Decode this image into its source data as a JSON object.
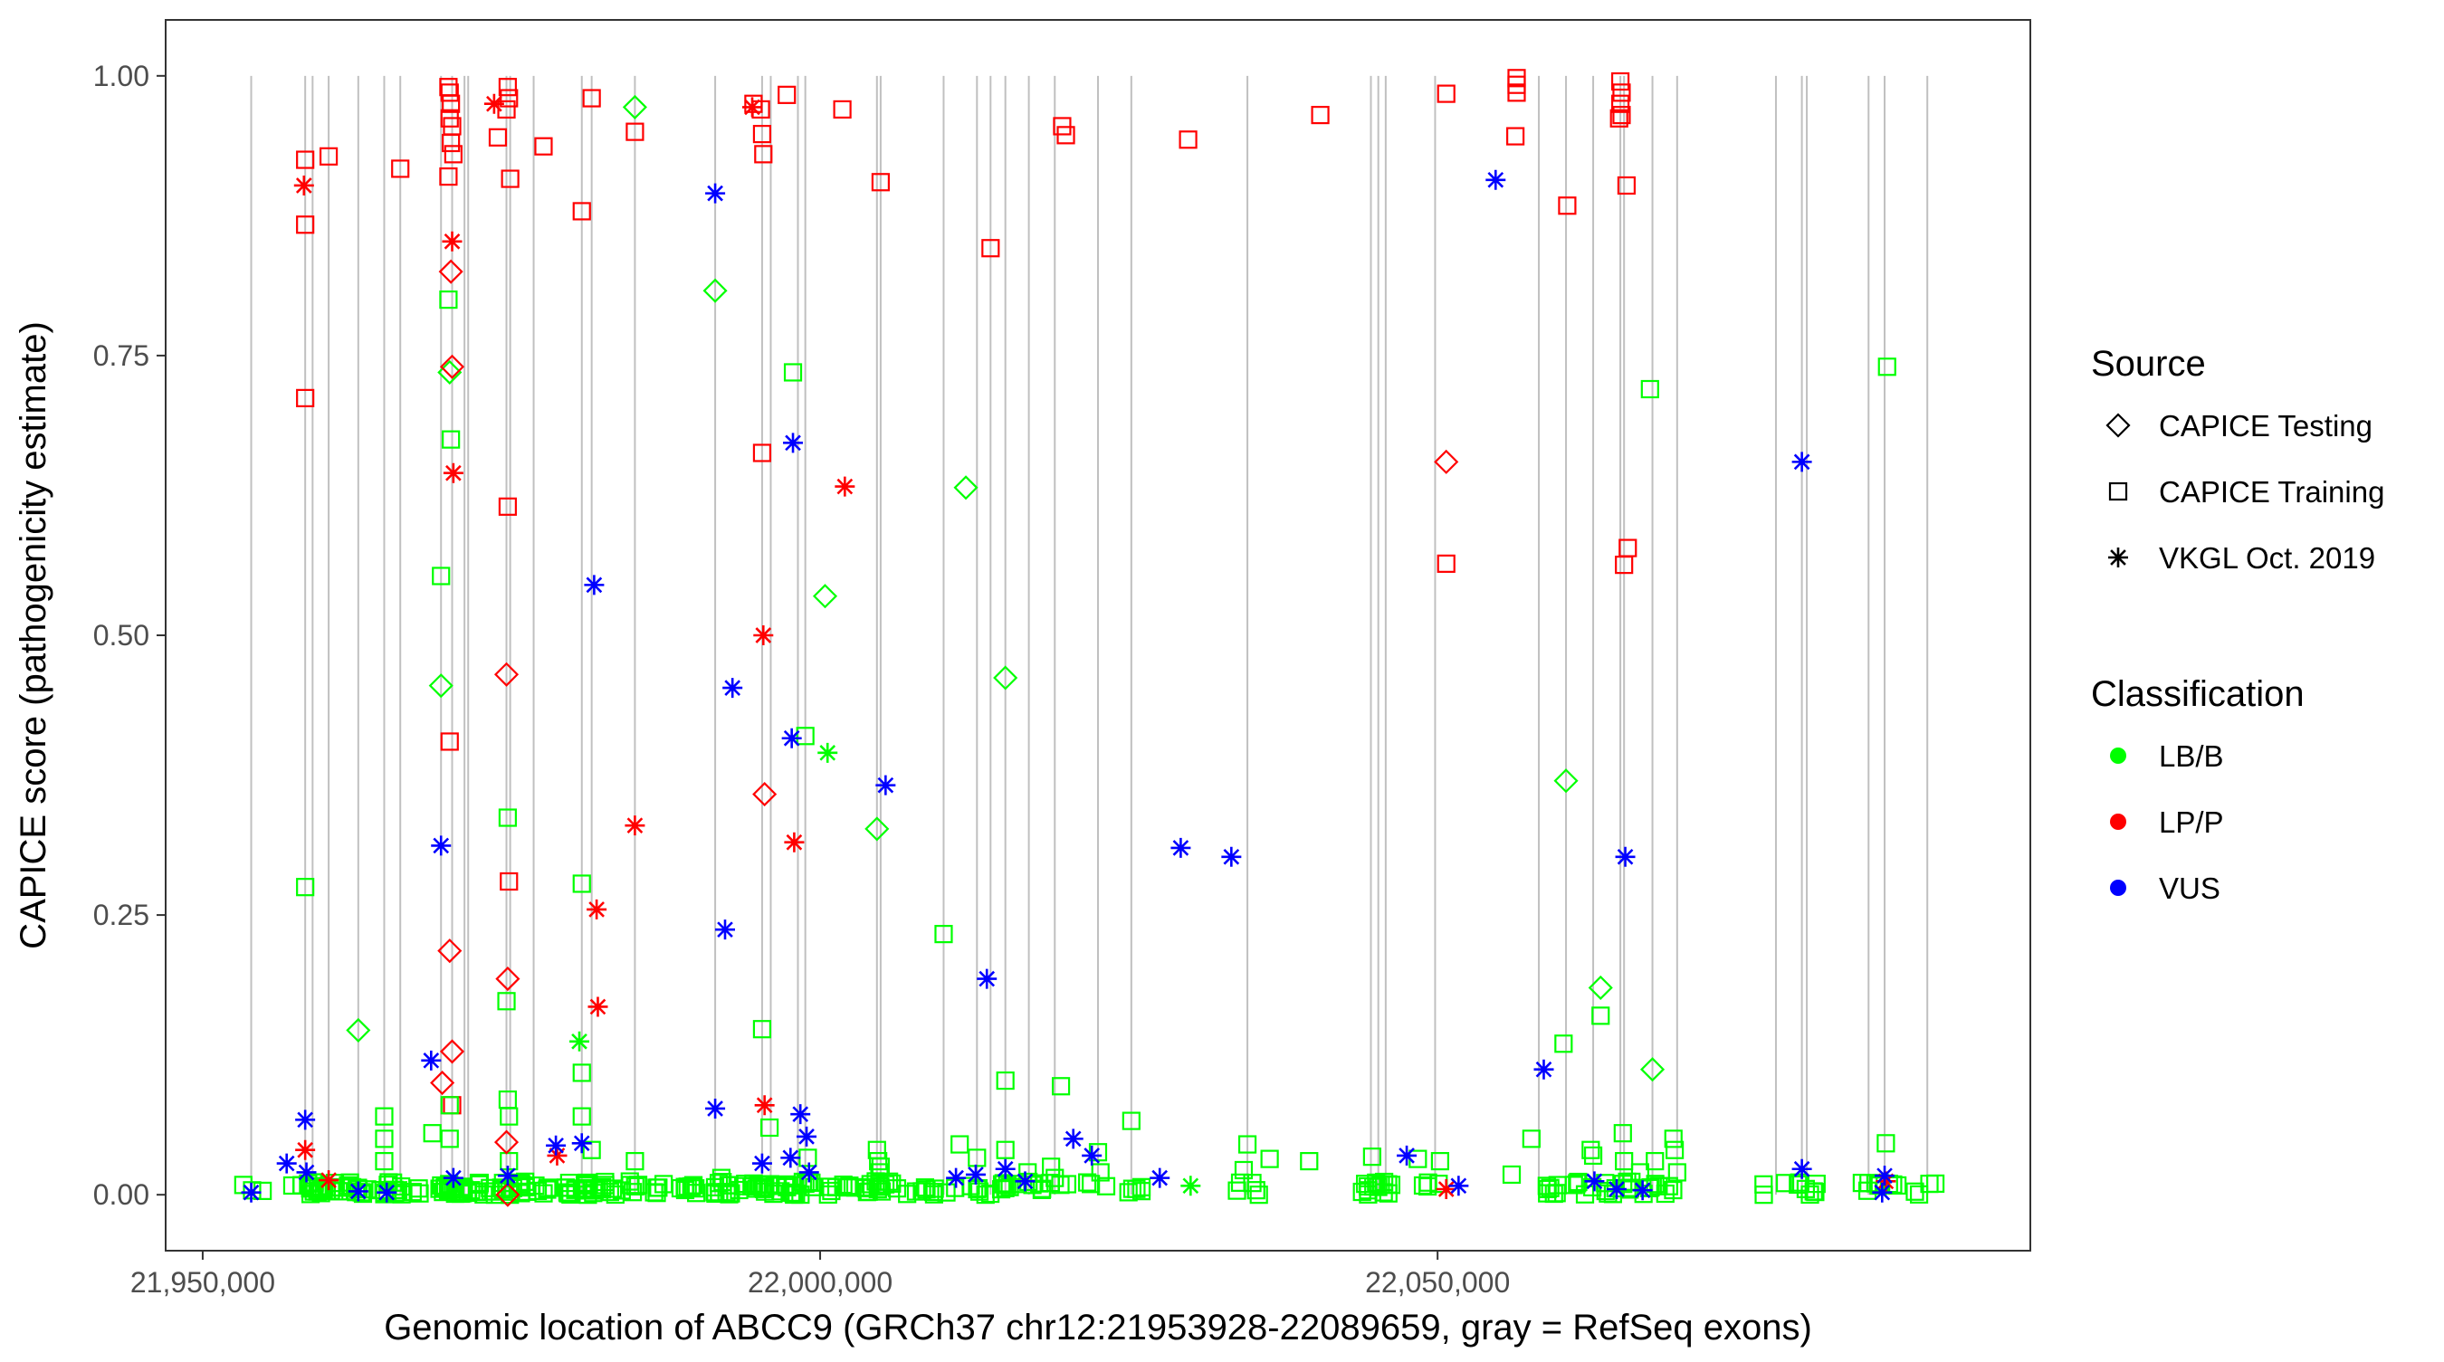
{
  "chart_data": {
    "type": "scatter",
    "title": "",
    "xlabel": "Genomic location of ABCC9 (GRCh37 chr12:21953928-22089659, gray = RefSeq exons)",
    "ylabel": "CAPICE score (pathogenicity estimate)",
    "xlim": [
      21947000,
      22098000
    ],
    "ylim": [
      -0.05,
      1.05
    ],
    "x_ticks": [
      21950000,
      22000000,
      22050000
    ],
    "x_tick_labels": [
      "21,950,000",
      "22,000,000",
      "22,050,000"
    ],
    "y_ticks": [
      0,
      0.25,
      0.5,
      0.75,
      1.0
    ],
    "y_tick_labels": [
      "0.00",
      "0.25",
      "0.50",
      "0.75",
      "1.00"
    ],
    "grid": false,
    "exon_lines": [
      21953928,
      21958300,
      21958900,
      21960200,
      21962600,
      21964700,
      21966000,
      21969300,
      21970200,
      21971200,
      21971500,
      21974600,
      21974900,
      21976800,
      21980700,
      21981500,
      21985000,
      21991500,
      21995300,
      21996000,
      21998200,
      21998800,
      22004600,
      22004900,
      22010000,
      22012700,
      22013800,
      22015000,
      22016900,
      22019000,
      22022500,
      22025200,
      22034600,
      22044600,
      22045200,
      22045800,
      22049800,
      22058200,
      22060400,
      22062600,
      22064800,
      22065100,
      22067400,
      22069400,
      22077400,
      22079500,
      22079900,
      22084900,
      22086200,
      22089659
    ],
    "legend": {
      "position": "right",
      "source_title": "Source",
      "source_items": [
        {
          "label": "CAPICE Testing",
          "shape": "diamond"
        },
        {
          "label": "CAPICE Training",
          "shape": "square"
        },
        {
          "label": "VKGL Oct. 2019",
          "shape": "asterisk"
        }
      ],
      "class_title": "Classification",
      "class_items": [
        {
          "label": "LB/B",
          "color": "#00ff00"
        },
        {
          "label": "LP/P",
          "color": "#ff0000"
        },
        {
          "label": "VUS",
          "color": "#0000ff"
        }
      ]
    },
    "colors": {
      "LB/B": "#00ff00",
      "LP/P": "#ff0000",
      "VUS": "#0000ff"
    },
    "series": [
      {
        "name": "CAPICE Training - LP/P",
        "shape": "square",
        "class": "LP/P",
        "points": [
          [
            21958300,
            0.925
          ],
          [
            21958300,
            0.867
          ],
          [
            21958300,
            0.712
          ],
          [
            21960200,
            0.928
          ],
          [
            21966000,
            0.917
          ],
          [
            21969900,
            0.99
          ],
          [
            21970000,
            0.985
          ],
          [
            21970100,
            0.975
          ],
          [
            21970000,
            0.962
          ],
          [
            21970200,
            0.955
          ],
          [
            21970100,
            0.94
          ],
          [
            21970300,
            0.93
          ],
          [
            21969900,
            0.91
          ],
          [
            21970000,
            0.405
          ],
          [
            21970200,
            0.08
          ],
          [
            21974700,
            0.99
          ],
          [
            21974800,
            0.98
          ],
          [
            21974600,
            0.97
          ],
          [
            21974900,
            0.908
          ],
          [
            21974700,
            0.615
          ],
          [
            21974800,
            0.28
          ],
          [
            21973900,
            0.945
          ],
          [
            21977600,
            0.937
          ],
          [
            21980700,
            0.879
          ],
          [
            21981500,
            0.98
          ],
          [
            21985000,
            0.95
          ],
          [
            21994600,
            0.975
          ],
          [
            21995200,
            0.97
          ],
          [
            21995300,
            0.948
          ],
          [
            21995400,
            0.93
          ],
          [
            21995300,
            0.663
          ],
          [
            21997300,
            0.983
          ],
          [
            22001800,
            0.97
          ],
          [
            22004900,
            0.905
          ],
          [
            22013800,
            0.846
          ],
          [
            22019600,
            0.955
          ],
          [
            22019900,
            0.947
          ],
          [
            22029800,
            0.943
          ],
          [
            22040500,
            0.965
          ],
          [
            22050700,
            0.984
          ],
          [
            22050700,
            0.564
          ],
          [
            22056400,
            0.998
          ],
          [
            22056400,
            0.992
          ],
          [
            22056400,
            0.985
          ],
          [
            22056300,
            0.946
          ],
          [
            22060500,
            0.884
          ],
          [
            22064800,
            0.995
          ],
          [
            22064900,
            0.985
          ],
          [
            22064800,
            0.975
          ],
          [
            22064900,
            0.965
          ],
          [
            22064700,
            0.962
          ],
          [
            22065300,
            0.902
          ],
          [
            22065400,
            0.578
          ],
          [
            22065100,
            0.563
          ]
        ]
      },
      {
        "name": "CAPICE Training - LB/B",
        "shape": "square",
        "class": "LB/B",
        "points": [
          [
            21958300,
            0.275
          ],
          [
            21964700,
            0.07
          ],
          [
            21964700,
            0.05
          ],
          [
            21964700,
            0.03
          ],
          [
            21968600,
            0.055
          ],
          [
            21969300,
            0.553
          ],
          [
            21969900,
            0.8
          ],
          [
            21970100,
            0.675
          ],
          [
            21970000,
            0.05
          ],
          [
            21970000,
            0.08
          ],
          [
            21974700,
            0.337
          ],
          [
            21974600,
            0.173
          ],
          [
            21974700,
            0.085
          ],
          [
            21974800,
            0.07
          ],
          [
            21974800,
            0.03
          ],
          [
            21980700,
            0.278
          ],
          [
            21980700,
            0.109
          ],
          [
            21980700,
            0.07
          ],
          [
            21981500,
            0.04
          ],
          [
            21985000,
            0.03
          ],
          [
            21992000,
            0.015
          ],
          [
            21994600,
            0.01
          ],
          [
            21995300,
            0.148
          ],
          [
            21995900,
            0.06
          ],
          [
            21997800,
            0.735
          ],
          [
            21998800,
            0.41
          ],
          [
            21999000,
            0.033
          ],
          [
            22004600,
            0.04
          ],
          [
            22004700,
            0.03
          ],
          [
            22004900,
            0.025
          ],
          [
            22004800,
            0.02
          ],
          [
            22010000,
            0.233
          ],
          [
            22011300,
            0.045
          ],
          [
            22012700,
            0.033
          ],
          [
            22015000,
            0.102
          ],
          [
            22015000,
            0.04
          ],
          [
            22016800,
            0.02
          ],
          [
            22018700,
            0.025
          ],
          [
            22019000,
            0.015
          ],
          [
            22019500,
            0.097
          ],
          [
            22022500,
            0.038
          ],
          [
            22022700,
            0.02
          ],
          [
            22025200,
            0.066
          ],
          [
            22034600,
            0.045
          ],
          [
            22034300,
            0.022
          ],
          [
            22036400,
            0.032
          ],
          [
            22039600,
            0.03
          ],
          [
            22044700,
            0.034
          ],
          [
            22048400,
            0.032
          ],
          [
            22050200,
            0.03
          ],
          [
            22056000,
            0.018
          ],
          [
            22057600,
            0.05
          ],
          [
            22060200,
            0.135
          ],
          [
            22062400,
            0.04
          ],
          [
            22062600,
            0.035
          ],
          [
            22063200,
            0.16
          ],
          [
            22065000,
            0.055
          ],
          [
            22065100,
            0.03
          ],
          [
            22066400,
            0.02
          ],
          [
            22067200,
            0.72
          ],
          [
            22067600,
            0.03
          ],
          [
            22069100,
            0.05
          ],
          [
            22069200,
            0.04
          ],
          [
            22069400,
            0.02
          ],
          [
            22086400,
            0.74
          ],
          [
            22086300,
            0.046
          ]
        ]
      },
      {
        "name": "CAPICE Testing - LB/B",
        "shape": "diamond",
        "class": "LB/B",
        "points": [
          [
            21962600,
            0.147
          ],
          [
            21969300,
            0.455
          ],
          [
            21970000,
            0.735
          ],
          [
            21985000,
            0.972
          ],
          [
            21991500,
            0.808
          ],
          [
            22000400,
            0.535
          ],
          [
            22004600,
            0.327
          ],
          [
            22011800,
            0.632
          ],
          [
            22015000,
            0.462
          ],
          [
            22060400,
            0.37
          ],
          [
            22063200,
            0.185
          ],
          [
            22067400,
            0.112
          ]
        ]
      },
      {
        "name": "CAPICE Testing - LP/P",
        "shape": "diamond",
        "class": "LP/P",
        "points": [
          [
            21969400,
            0.1
          ],
          [
            21970000,
            0.218
          ],
          [
            21970200,
            0.128
          ],
          [
            21970100,
            0.825
          ],
          [
            21970200,
            0.74
          ],
          [
            21974600,
            0.465
          ],
          [
            21974700,
            0.193
          ],
          [
            21974600,
            0.047
          ],
          [
            21974700,
            0.0
          ],
          [
            21995500,
            0.358
          ],
          [
            22050700,
            0.655
          ]
        ]
      },
      {
        "name": "VKGL Oct. 2019 - LP/P",
        "shape": "asterisk",
        "class": "LP/P",
        "points": [
          [
            21958200,
            0.902
          ],
          [
            21958300,
            0.04
          ],
          [
            21960200,
            0.013
          ],
          [
            21970200,
            0.852
          ],
          [
            21970300,
            0.645
          ],
          [
            21973600,
            0.975
          ],
          [
            21978700,
            0.035
          ],
          [
            21981900,
            0.255
          ],
          [
            21982000,
            0.168
          ],
          [
            21985000,
            0.33
          ],
          [
            21994500,
            0.972
          ],
          [
            21995400,
            0.5
          ],
          [
            21995500,
            0.08
          ],
          [
            21997900,
            0.315
          ],
          [
            22002000,
            0.633
          ],
          [
            22050700,
            0.005
          ],
          [
            22086300,
            0.012
          ]
        ]
      },
      {
        "name": "VKGL Oct. 2019 - VUS",
        "shape": "asterisk",
        "class": "VUS",
        "points": [
          [
            21953928,
            0.002
          ],
          [
            21956800,
            0.028
          ],
          [
            21958300,
            0.067
          ],
          [
            21958400,
            0.02
          ],
          [
            21962600,
            0.003
          ],
          [
            21964900,
            0.002
          ],
          [
            21968500,
            0.12
          ],
          [
            21969300,
            0.312
          ],
          [
            21970300,
            0.015
          ],
          [
            21974700,
            0.017
          ],
          [
            21978600,
            0.044
          ],
          [
            21980700,
            0.046
          ],
          [
            21981700,
            0.545
          ],
          [
            21991500,
            0.895
          ],
          [
            21991500,
            0.077
          ],
          [
            21992900,
            0.453
          ],
          [
            21992300,
            0.237
          ],
          [
            21995300,
            0.028
          ],
          [
            21997800,
            0.672
          ],
          [
            21997700,
            0.408
          ],
          [
            21997600,
            0.033
          ],
          [
            21998400,
            0.072
          ],
          [
            21998900,
            0.052
          ],
          [
            21999100,
            0.02
          ],
          [
            22005300,
            0.366
          ],
          [
            22011000,
            0.015
          ],
          [
            22013500,
            0.193
          ],
          [
            22012600,
            0.018
          ],
          [
            22015000,
            0.023
          ],
          [
            22016600,
            0.012
          ],
          [
            22020500,
            0.05
          ],
          [
            22022000,
            0.035
          ],
          [
            22027500,
            0.015
          ],
          [
            22029200,
            0.31
          ],
          [
            22033300,
            0.302
          ],
          [
            22047500,
            0.035
          ],
          [
            22051700,
            0.008
          ],
          [
            22054700,
            0.907
          ],
          [
            22058600,
            0.112
          ],
          [
            22062700,
            0.012
          ],
          [
            22064500,
            0.005
          ],
          [
            22065200,
            0.302
          ],
          [
            22066600,
            0.004
          ],
          [
            22079500,
            0.655
          ],
          [
            22079500,
            0.023
          ],
          [
            22086200,
            0.017
          ],
          [
            22086000,
            0.002
          ]
        ]
      },
      {
        "name": "VKGL Oct. 2019 - LB/B",
        "shape": "asterisk",
        "class": "LB/B",
        "points": [
          [
            21980500,
            0.137
          ],
          [
            22000600,
            0.395
          ],
          [
            22030000,
            0.008
          ]
        ]
      }
    ]
  }
}
